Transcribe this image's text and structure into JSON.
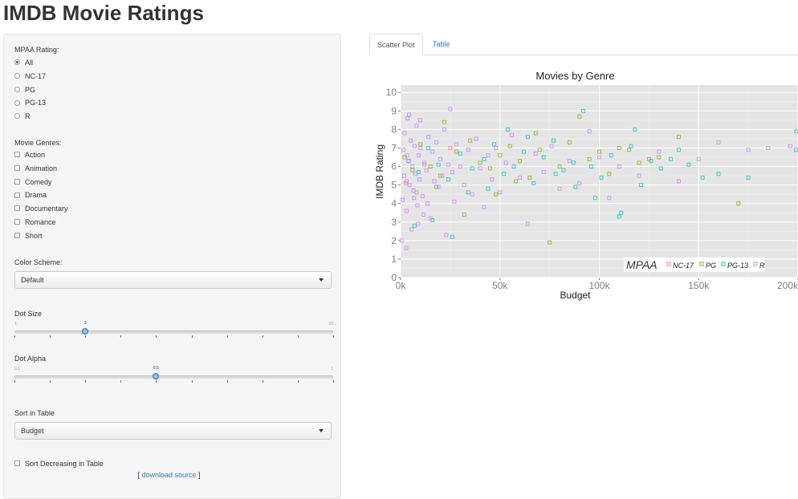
{
  "title": "IMDB Movie Ratings",
  "sidebar": {
    "mpaa_label": "MPAA Rating:",
    "mpaa_options": [
      {
        "label": "All",
        "checked": true
      },
      {
        "label": "NC-17",
        "checked": false
      },
      {
        "label": "PG",
        "checked": false
      },
      {
        "label": "PG-13",
        "checked": false
      },
      {
        "label": "R",
        "checked": false
      }
    ],
    "genres_label": "Movie Genres:",
    "genres": [
      "Action",
      "Animation",
      "Comedy",
      "Drama",
      "Documentary",
      "Romance",
      "Short"
    ],
    "color_scheme_label": "Color Scheme:",
    "color_scheme_value": "Default",
    "dot_size": {
      "label": "Dot Size",
      "min": "1",
      "max": "10",
      "value": "3",
      "fraction": 0.222
    },
    "dot_alpha": {
      "label": "Dot Alpha",
      "min": "0.1",
      "max": "1",
      "value": "0.5",
      "fraction": 0.444
    },
    "sort_label": "Sort in Table",
    "sort_value": "Budget",
    "sort_decreasing_label": "Sort Decreasing in Table",
    "source_prefix": "[",
    "source_link": "download source",
    "source_suffix": "]"
  },
  "tabs": [
    {
      "label": "Scatter Plot",
      "active": true
    },
    {
      "label": "Table",
      "active": false
    }
  ],
  "chart_data": {
    "type": "scatter",
    "title": "Movies by Genre",
    "xlabel": "Budget",
    "ylabel": "IMDB Rating",
    "xlim": [
      0,
      200000
    ],
    "ylim": [
      0,
      10.4
    ],
    "x_ticks": [
      0,
      50000,
      100000,
      150000,
      200000
    ],
    "x_tick_labels": [
      "0k",
      "50k",
      "100k",
      "150k",
      "200k"
    ],
    "y_ticks": [
      0,
      1,
      2,
      3,
      4,
      5,
      6,
      7,
      8,
      9,
      10
    ],
    "y_tick_labels": [
      "0",
      "1",
      "2",
      "3",
      "4",
      "5",
      "6",
      "7",
      "8",
      "9",
      "10"
    ],
    "grid": true,
    "legend": {
      "title": "MPAA",
      "placement": "bottom-right-inside"
    },
    "series": [
      {
        "name": "NC-17",
        "color": "#f8766d",
        "points": [
          [
            3000,
            5.2
          ],
          [
            12000,
            6.1
          ],
          [
            25000,
            7.0
          ],
          [
            8000,
            4.6
          ]
        ]
      },
      {
        "name": "PG",
        "color": "#7cae00",
        "points": [
          [
            2000,
            6.5
          ],
          [
            6000,
            5.8
          ],
          [
            10000,
            7.2
          ],
          [
            15000,
            6.0
          ],
          [
            20000,
            5.5
          ],
          [
            28000,
            6.8
          ],
          [
            35000,
            7.4
          ],
          [
            40000,
            6.2
          ],
          [
            45000,
            5.9
          ],
          [
            50000,
            6.6
          ],
          [
            55000,
            7.1
          ],
          [
            60000,
            6.3
          ],
          [
            65000,
            5.4
          ],
          [
            70000,
            6.9
          ],
          [
            75000,
            1.9
          ],
          [
            80000,
            6.0
          ],
          [
            85000,
            7.3
          ],
          [
            90000,
            8.7
          ],
          [
            95000,
            6.4
          ],
          [
            100000,
            6.8
          ],
          [
            110000,
            7.0
          ],
          [
            120000,
            6.2
          ],
          [
            130000,
            6.5
          ],
          [
            140000,
            7.6
          ],
          [
            170000,
            4.0
          ],
          [
            32000,
            3.4
          ],
          [
            48000,
            4.5
          ],
          [
            22000,
            8.4
          ],
          [
            18000,
            4.9
          ],
          [
            58000,
            5.2
          ],
          [
            68000,
            7.8
          ],
          [
            105000,
            5.6
          ],
          [
            115000,
            6.9
          ],
          [
            125000,
            6.4
          ]
        ]
      },
      {
        "name": "PG-13",
        "color": "#00bfc4",
        "points": [
          [
            4000,
            6.3
          ],
          [
            9000,
            5.7
          ],
          [
            14000,
            7.0
          ],
          [
            19000,
            6.1
          ],
          [
            24000,
            5.3
          ],
          [
            30000,
            6.7
          ],
          [
            36000,
            5.9
          ],
          [
            42000,
            6.4
          ],
          [
            47000,
            7.2
          ],
          [
            52000,
            5.6
          ],
          [
            57000,
            6.0
          ],
          [
            62000,
            6.8
          ],
          [
            67000,
            5.1
          ],
          [
            72000,
            6.5
          ],
          [
            77000,
            7.4
          ],
          [
            82000,
            5.8
          ],
          [
            87000,
            6.2
          ],
          [
            92000,
            9.0
          ],
          [
            96000,
            6.0
          ],
          [
            101000,
            5.4
          ],
          [
            106000,
            6.6
          ],
          [
            111000,
            3.5
          ],
          [
            116000,
            7.1
          ],
          [
            121000,
            5.0
          ],
          [
            126000,
            6.3
          ],
          [
            131000,
            5.9
          ],
          [
            136000,
            6.4
          ],
          [
            145000,
            6.1
          ],
          [
            152000,
            5.4
          ],
          [
            160000,
            5.6
          ],
          [
            175000,
            5.4
          ],
          [
            200000,
            7.9
          ],
          [
            199000,
            6.9
          ],
          [
            118000,
            8.0
          ],
          [
            98000,
            4.3
          ],
          [
            88000,
            4.9
          ],
          [
            78000,
            5.6
          ],
          [
            64000,
            7.6
          ],
          [
            54000,
            8.0
          ],
          [
            44000,
            4.8
          ],
          [
            34000,
            4.6
          ],
          [
            26000,
            2.2
          ],
          [
            16000,
            3.1
          ],
          [
            7000,
            2.8
          ],
          [
            110000,
            3.3
          ],
          [
            140000,
            6.9
          ]
        ]
      },
      {
        "name": "R",
        "color": "#c77cff",
        "points": [
          [
            500,
            2.0
          ],
          [
            1000,
            4.2
          ],
          [
            1500,
            6.9
          ],
          [
            2000,
            7.8
          ],
          [
            2500,
            5.1
          ],
          [
            3000,
            3.6
          ],
          [
            3500,
            8.6
          ],
          [
            4000,
            6.3
          ],
          [
            4500,
            5.0
          ],
          [
            5000,
            7.4
          ],
          [
            5500,
            2.6
          ],
          [
            6000,
            6.0
          ],
          [
            6500,
            4.7
          ],
          [
            7000,
            7.1
          ],
          [
            7500,
            5.6
          ],
          [
            8000,
            8.2
          ],
          [
            8500,
            3.9
          ],
          [
            9000,
            6.6
          ],
          [
            9500,
            5.3
          ],
          [
            10000,
            7.0
          ],
          [
            11000,
            4.4
          ],
          [
            12000,
            6.2
          ],
          [
            13000,
            5.8
          ],
          [
            14000,
            7.6
          ],
          [
            15000,
            3.2
          ],
          [
            16000,
            6.8
          ],
          [
            17000,
            5.2
          ],
          [
            18000,
            7.3
          ],
          [
            19000,
            4.9
          ],
          [
            20000,
            6.4
          ],
          [
            21000,
            5.5
          ],
          [
            22000,
            8.0
          ],
          [
            23000,
            2.3
          ],
          [
            24000,
            6.1
          ],
          [
            25000,
            9.1
          ],
          [
            26000,
            5.7
          ],
          [
            27000,
            4.1
          ],
          [
            28000,
            7.2
          ],
          [
            30000,
            6.0
          ],
          [
            32000,
            5.0
          ],
          [
            34000,
            6.9
          ],
          [
            36000,
            4.5
          ],
          [
            38000,
            7.5
          ],
          [
            40000,
            5.9
          ],
          [
            42000,
            3.8
          ],
          [
            44000,
            6.6
          ],
          [
            46000,
            5.3
          ],
          [
            48000,
            7.0
          ],
          [
            50000,
            4.6
          ],
          [
            53000,
            6.2
          ],
          [
            56000,
            7.7
          ],
          [
            60000,
            5.4
          ],
          [
            64000,
            2.9
          ],
          [
            68000,
            6.7
          ],
          [
            72000,
            5.7
          ],
          [
            76000,
            7.1
          ],
          [
            80000,
            4.8
          ],
          [
            85000,
            6.3
          ],
          [
            90000,
            5.1
          ],
          [
            95000,
            7.9
          ],
          [
            100000,
            6.5
          ],
          [
            105000,
            4.3
          ],
          [
            110000,
            6.0
          ],
          [
            120000,
            5.5
          ],
          [
            130000,
            6.8
          ],
          [
            140000,
            5.2
          ],
          [
            150000,
            6.4
          ],
          [
            160000,
            7.3
          ],
          [
            175000,
            6.9
          ],
          [
            185000,
            7.0
          ],
          [
            196000,
            7.1
          ],
          [
            2800,
            1.6
          ],
          [
            8800,
            2.9
          ],
          [
            13500,
            4.0
          ],
          [
            4200,
            8.8
          ],
          [
            9800,
            8.5
          ],
          [
            11500,
            3.4
          ],
          [
            6800,
            4.3
          ],
          [
            1800,
            5.5
          ],
          [
            3300,
            6.6
          ]
        ]
      }
    ]
  }
}
